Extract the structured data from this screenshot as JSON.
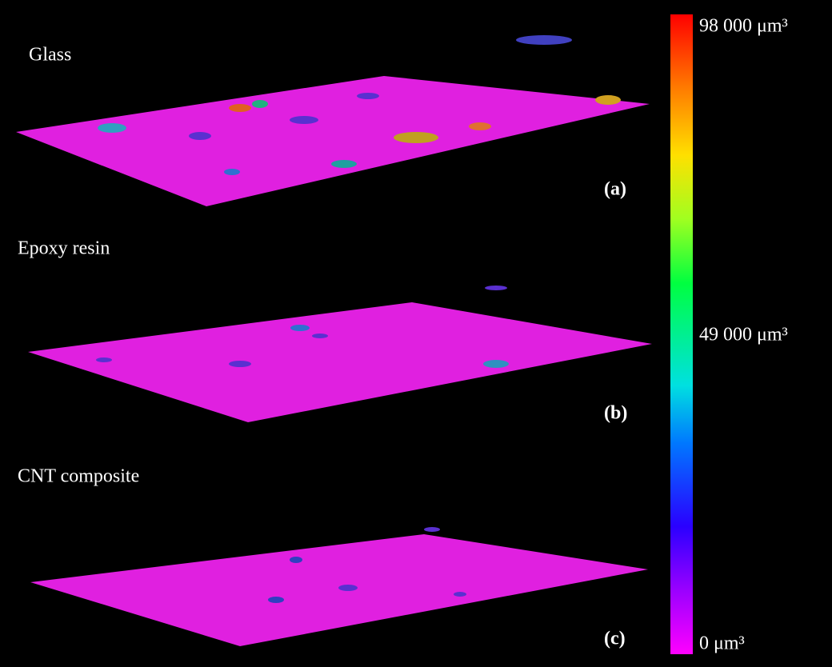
{
  "panels": [
    {
      "name": "Glass",
      "tag": "(a)"
    },
    {
      "name": "Epoxy resin",
      "tag": "(b)"
    },
    {
      "name": "CNT composite",
      "tag": "(c)"
    }
  ],
  "colorbar": {
    "lim": [
      0,
      98000
    ],
    "ticks": [
      {
        "value": 98000,
        "label": "98 000 μm³"
      },
      {
        "value": 49000,
        "label": "49 000 μm³"
      },
      {
        "value": 0,
        "label": "0 μm³"
      }
    ]
  }
}
